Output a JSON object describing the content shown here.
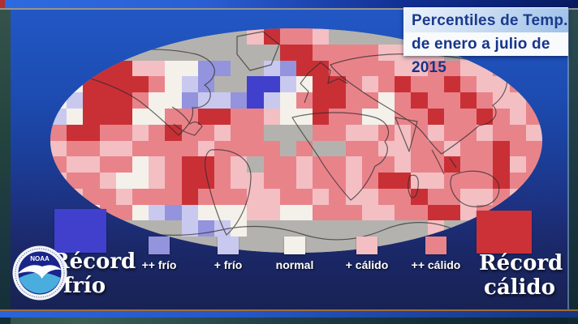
{
  "header": {
    "title_line1": "Percentiles de Temp.",
    "title_line2": "de enero a julio de 2015"
  },
  "legend": {
    "record_cold": {
      "label_line1": "Récord",
      "label_line2": "frío",
      "color": "#4040cc"
    },
    "items": [
      {
        "label": "++ frío",
        "color": "#9393de"
      },
      {
        "label": "+ frío",
        "color": "#c9c9ef"
      },
      {
        "label": "normal",
        "color": "#f4f1ea"
      },
      {
        "label": "+ cálido",
        "color": "#f3bfc3"
      },
      {
        "label": "++ cálido",
        "color": "#e9838a"
      }
    ],
    "record_warm": {
      "label_line1": "Récord",
      "label_line2": "cálido",
      "color": "#cc3137"
    }
  },
  "logo": {
    "agency": "NOAA"
  },
  "map": {
    "description": "world-temperature-percentile-grid",
    "cols": 30,
    "rows": 14,
    "palette": {
      "B": "#4040cc",
      "C": "#9393de",
      "c": "#c9c9ef",
      "n": "#f4f1ea",
      "p": "#f3bfc3",
      "w": "#e9838a",
      "R": "#c93036",
      "g": "#b4b2ae"
    },
    "palette_meaning": {
      "B": "récord frío",
      "C": "++ frío",
      "c": "+ frío",
      "n": "normal",
      "p": "+ cálido",
      "w": "++ cálido",
      "R": "récord cálido",
      "g": "sin datos"
    },
    "grid_rows": [
      "ggggggggggggpRwwpggggggggggggg",
      "ppwwggggggggggRRwwwwppppgppppp",
      "pwRRRppnnCCggcCRRwwwwppwwppwpp",
      "cnRRRRwncCggBBcnRRwpwRwwRwppwp",
      "ncRRRwnnCccCBcnwRRwwnwRwwRwppw",
      "cnRRRnnwwRRwwpnnRwwnnwwRwwRwpw",
      "wRRwwpwRwwpwwgggwwppwpwpwwpwwp",
      "pwwppwwwwpwwwwgwggwwppwwpwwRww",
      "wppwwnpwRRwpgwwpwwpwwpwwRwwRpw",
      "pwwpnnpwRRwppwwpwwpwRRppwwwRww",
      "npwwpwwwRwwwppwwpwppwwRwwppwpw",
      "pnnwwncCcnnnppnnwwwppwwRRpwwpp",
      "ggggggggcCcngggggggggggpgggggg",
      "gggggggggggggggggggggggggggggg"
    ]
  }
}
